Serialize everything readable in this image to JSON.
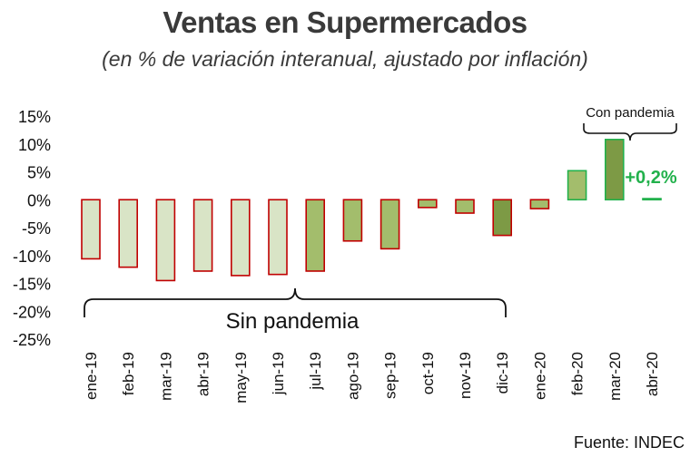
{
  "chart_data": {
    "type": "bar",
    "title": "Ventas en Supermercados",
    "subtitle": "(en % de variación interanual, ajustado por inflación)",
    "categories": [
      "ene-19",
      "feb-19",
      "mar-19",
      "abr-19",
      "may-19",
      "jun-19",
      "jul-19",
      "ago-19",
      "sep-19",
      "oct-19",
      "nov-19",
      "dic-19",
      "ene-20",
      "feb-20",
      "mar-20",
      "abr-20"
    ],
    "values": [
      -10.6,
      -12.1,
      -14.5,
      -12.8,
      -13.6,
      -13.4,
      -12.8,
      -7.4,
      -8.8,
      -1.4,
      -2.4,
      -6.4,
      -1.6,
      5.2,
      10.8,
      0.2
    ],
    "yticks": [
      "15%",
      "10%",
      "5%",
      "0%",
      "-5%",
      "-10%",
      "-15%",
      "-20%",
      "-25%"
    ],
    "ylim": [
      -25,
      15
    ],
    "annotations": {
      "sin_pandemia": "Sin pandemia",
      "con_pandemia": "Con pandemia",
      "last_value_label": "+0,2%"
    },
    "colors": {
      "light_fill": "#d9e4c6",
      "mid_fill": "#a3bd6c",
      "dark_fill": "#7d9a45",
      "border_red": "#c00000",
      "border_green": "#22b14c",
      "label_green": "#22b14c"
    },
    "fill_groups": [
      "light",
      "light",
      "light",
      "light",
      "light",
      "light",
      "mid",
      "mid",
      "mid",
      "mid",
      "mid",
      "dark",
      "mid",
      "mid",
      "dark",
      "dark"
    ],
    "border_groups": [
      "red",
      "red",
      "red",
      "red",
      "red",
      "red",
      "red",
      "red",
      "red",
      "red",
      "red",
      "red",
      "red",
      "green",
      "green",
      "green"
    ]
  },
  "source": "Fuente: INDEC"
}
